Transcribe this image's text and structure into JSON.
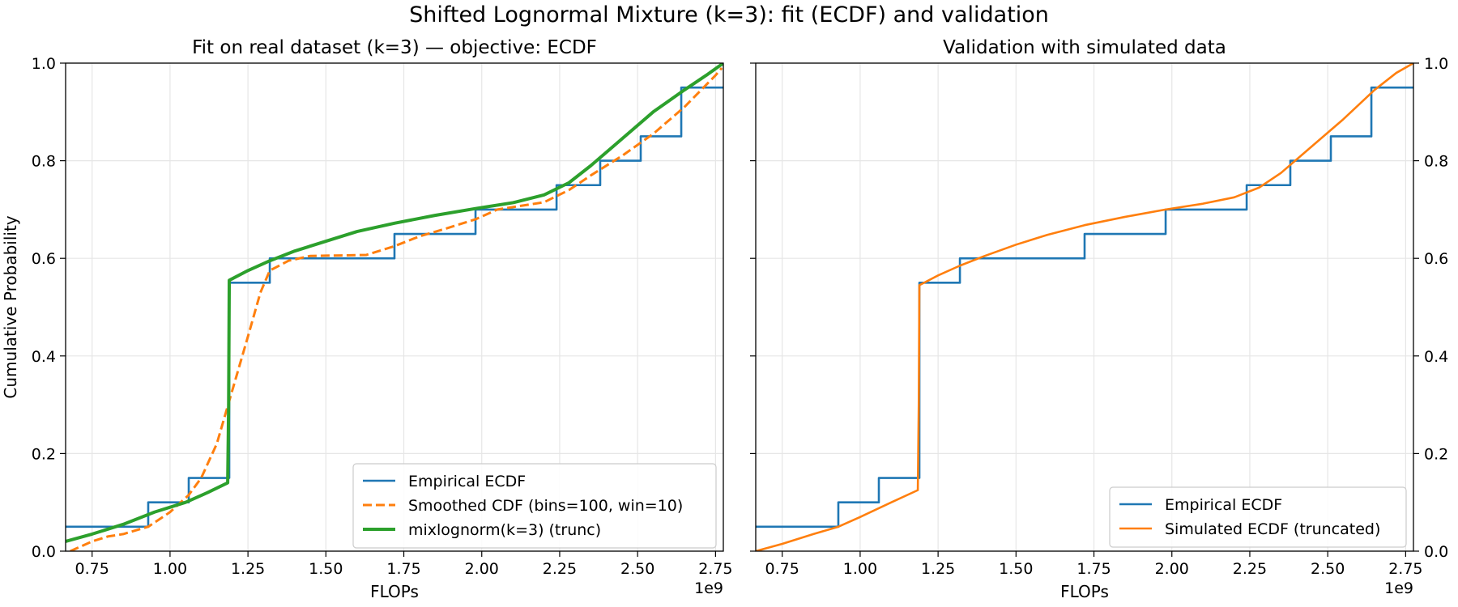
{
  "figure": {
    "title": "Shifted Lognormal Mixture (k=3): fit (ECDF) and validation"
  },
  "colors": {
    "blue": "#1f77b4",
    "orange": "#ff7f0e",
    "green": "#2ca02c",
    "grid": "#e6e6e6"
  },
  "chart_data": [
    {
      "type": "line",
      "title": "Fit on real dataset (k=3) — objective: ECDF",
      "xlabel": "FLOPs",
      "ylabel": "Cumulative Probability",
      "x_offset_label": "1e9",
      "xlim": [
        0.665,
        2.775
      ],
      "ylim": [
        0.0,
        1.0
      ],
      "xticks": [
        0.75,
        1.0,
        1.25,
        1.5,
        1.75,
        2.0,
        2.25,
        2.5,
        2.75
      ],
      "xtick_labels": [
        "0.75",
        "1.00",
        "1.25",
        "1.50",
        "1.75",
        "2.00",
        "2.25",
        "2.50",
        "2.75"
      ],
      "yticks": [
        0.0,
        0.2,
        0.4,
        0.6,
        0.8,
        1.0
      ],
      "ytick_labels": [
        "0.0",
        "0.2",
        "0.4",
        "0.6",
        "0.8",
        "1.0"
      ],
      "grid": true,
      "legend_position": "lower-right",
      "series": [
        {
          "name": "Empirical ECDF",
          "style": "step",
          "color": "#1f77b4",
          "points": [
            [
              0.665,
              0.05
            ],
            [
              0.93,
              0.05
            ],
            [
              0.93,
              0.1
            ],
            [
              1.06,
              0.1
            ],
            [
              1.06,
              0.15
            ],
            [
              1.19,
              0.15
            ],
            [
              1.19,
              0.55
            ],
            [
              1.32,
              0.55
            ],
            [
              1.32,
              0.6
            ],
            [
              1.72,
              0.6
            ],
            [
              1.72,
              0.65
            ],
            [
              1.98,
              0.65
            ],
            [
              1.98,
              0.7
            ],
            [
              2.24,
              0.7
            ],
            [
              2.24,
              0.75
            ],
            [
              2.38,
              0.75
            ],
            [
              2.38,
              0.8
            ],
            [
              2.51,
              0.8
            ],
            [
              2.51,
              0.85
            ],
            [
              2.64,
              0.85
            ],
            [
              2.64,
              0.95
            ],
            [
              2.775,
              0.95
            ]
          ]
        },
        {
          "name": "Smoothed CDF (bins=100, win=10)",
          "style": "dashed",
          "color": "#ff7f0e",
          "points": [
            [
              0.68,
              0.0
            ],
            [
              0.75,
              0.02
            ],
            [
              0.8,
              0.03
            ],
            [
              0.85,
              0.035
            ],
            [
              0.93,
              0.05
            ],
            [
              1.0,
              0.08
            ],
            [
              1.06,
              0.115
            ],
            [
              1.1,
              0.15
            ],
            [
              1.15,
              0.22
            ],
            [
              1.2,
              0.33
            ],
            [
              1.25,
              0.44
            ],
            [
              1.29,
              0.53
            ],
            [
              1.32,
              0.575
            ],
            [
              1.38,
              0.595
            ],
            [
              1.45,
              0.605
            ],
            [
              1.55,
              0.606
            ],
            [
              1.63,
              0.607
            ],
            [
              1.72,
              0.625
            ],
            [
              1.8,
              0.645
            ],
            [
              1.88,
              0.66
            ],
            [
              1.98,
              0.68
            ],
            [
              2.05,
              0.7
            ],
            [
              2.15,
              0.71
            ],
            [
              2.2,
              0.715
            ],
            [
              2.28,
              0.74
            ],
            [
              2.35,
              0.77
            ],
            [
              2.45,
              0.81
            ],
            [
              2.55,
              0.855
            ],
            [
              2.65,
              0.91
            ],
            [
              2.75,
              0.975
            ],
            [
              2.77,
              0.99
            ]
          ]
        },
        {
          "name": "mixlognorm(k=3) (trunc)",
          "style": "solid-thick",
          "color": "#2ca02c",
          "points": [
            [
              0.665,
              0.02
            ],
            [
              0.75,
              0.035
            ],
            [
              0.85,
              0.055
            ],
            [
              0.95,
              0.08
            ],
            [
              1.05,
              0.1
            ],
            [
              1.12,
              0.12
            ],
            [
              1.185,
              0.14
            ],
            [
              1.188,
              0.3
            ],
            [
              1.19,
              0.555
            ],
            [
              1.25,
              0.575
            ],
            [
              1.32,
              0.595
            ],
            [
              1.4,
              0.615
            ],
            [
              1.5,
              0.635
            ],
            [
              1.6,
              0.655
            ],
            [
              1.72,
              0.672
            ],
            [
              1.85,
              0.688
            ],
            [
              1.98,
              0.702
            ],
            [
              2.1,
              0.714
            ],
            [
              2.2,
              0.73
            ],
            [
              2.28,
              0.755
            ],
            [
              2.35,
              0.79
            ],
            [
              2.45,
              0.845
            ],
            [
              2.55,
              0.9
            ],
            [
              2.65,
              0.945
            ],
            [
              2.72,
              0.975
            ],
            [
              2.775,
              1.0
            ]
          ]
        }
      ]
    },
    {
      "type": "line",
      "title": "Validation with simulated data",
      "xlabel": "FLOPs",
      "x_offset_label": "1e9",
      "xlim": [
        0.665,
        2.775
      ],
      "ylim": [
        0.0,
        1.0
      ],
      "xticks": [
        0.75,
        1.0,
        1.25,
        1.5,
        1.75,
        2.0,
        2.25,
        2.5,
        2.75
      ],
      "xtick_labels": [
        "0.75",
        "1.00",
        "1.25",
        "1.50",
        "1.75",
        "2.00",
        "2.25",
        "2.50",
        "2.75"
      ],
      "yticks": [
        0.0,
        0.2,
        0.4,
        0.6,
        0.8,
        1.0
      ],
      "ytick_labels": [
        "0.0",
        "0.2",
        "0.4",
        "0.6",
        "0.8",
        "1.0"
      ],
      "grid": true,
      "legend_position": "lower-right",
      "series": [
        {
          "name": "Empirical ECDF",
          "style": "step",
          "color": "#1f77b4",
          "points": [
            [
              0.665,
              0.05
            ],
            [
              0.93,
              0.05
            ],
            [
              0.93,
              0.1
            ],
            [
              1.06,
              0.1
            ],
            [
              1.06,
              0.15
            ],
            [
              1.19,
              0.15
            ],
            [
              1.19,
              0.55
            ],
            [
              1.32,
              0.55
            ],
            [
              1.32,
              0.6
            ],
            [
              1.72,
              0.6
            ],
            [
              1.72,
              0.65
            ],
            [
              1.98,
              0.65
            ],
            [
              1.98,
              0.7
            ],
            [
              2.24,
              0.7
            ],
            [
              2.24,
              0.75
            ],
            [
              2.38,
              0.75
            ],
            [
              2.38,
              0.8
            ],
            [
              2.51,
              0.8
            ],
            [
              2.51,
              0.85
            ],
            [
              2.64,
              0.85
            ],
            [
              2.64,
              0.95
            ],
            [
              2.775,
              0.95
            ]
          ]
        },
        {
          "name": "Simulated ECDF (truncated)",
          "style": "solid",
          "color": "#ff7f0e",
          "points": [
            [
              0.665,
              0.0
            ],
            [
              0.75,
              0.015
            ],
            [
              0.85,
              0.035
            ],
            [
              0.93,
              0.05
            ],
            [
              1.0,
              0.07
            ],
            [
              1.1,
              0.1
            ],
            [
              1.185,
              0.125
            ],
            [
              1.188,
              0.3
            ],
            [
              1.19,
              0.545
            ],
            [
              1.25,
              0.565
            ],
            [
              1.32,
              0.585
            ],
            [
              1.4,
              0.605
            ],
            [
              1.5,
              0.628
            ],
            [
              1.6,
              0.648
            ],
            [
              1.72,
              0.668
            ],
            [
              1.85,
              0.685
            ],
            [
              1.98,
              0.7
            ],
            [
              2.1,
              0.712
            ],
            [
              2.2,
              0.725
            ],
            [
              2.28,
              0.745
            ],
            [
              2.35,
              0.775
            ],
            [
              2.45,
              0.83
            ],
            [
              2.55,
              0.885
            ],
            [
              2.65,
              0.945
            ],
            [
              2.72,
              0.98
            ],
            [
              2.775,
              1.0
            ]
          ]
        }
      ]
    }
  ]
}
